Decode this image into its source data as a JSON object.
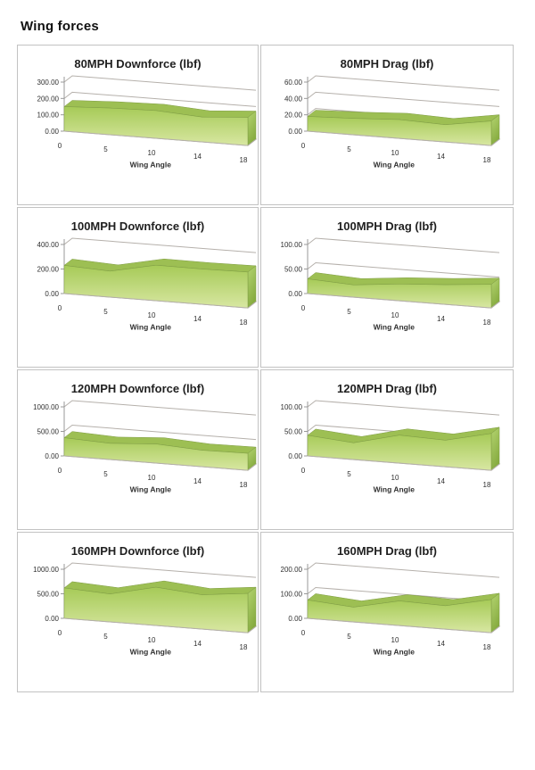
{
  "page": {
    "title": "Wing forces"
  },
  "colors": {
    "area_front_top": "#a6ca57",
    "area_front_bottom": "#d8e7a2",
    "area_ribbon": "#9dbf53",
    "area_side_top": "#b4d470",
    "area_side_bottom": "#86ab40",
    "area_edge": "#7e9c44",
    "gridline": "#b5b0ab",
    "axis": "#999999",
    "label_text": "#303030",
    "cell_border": "#c2c2c2"
  },
  "chart_data": [
    {
      "type": "area",
      "title": "80MPH Downforce (lbf)",
      "xlabel": "Wing Angle",
      "categories": [
        0,
        5,
        10,
        14,
        18
      ],
      "values": [
        150,
        163,
        170,
        152,
        172
      ],
      "ylim": [
        0,
        300
      ],
      "yticks": [
        0,
        100,
        200,
        300
      ]
    },
    {
      "type": "area",
      "title": "80MPH Drag (lbf)",
      "xlabel": "Wing Angle",
      "categories": [
        0,
        5,
        10,
        14,
        18
      ],
      "values": [
        18,
        20,
        23,
        21,
        30
      ],
      "ylim": [
        0,
        60
      ],
      "yticks": [
        0,
        20,
        40,
        60
      ]
    },
    {
      "type": "area",
      "title": "100MPH Downforce (lbf)",
      "xlabel": "Wing Angle",
      "categories": [
        0,
        5,
        10,
        14,
        18
      ],
      "values": [
        230,
        212,
        290,
        288,
        292
      ],
      "ylim": [
        0,
        400
      ],
      "yticks": [
        0,
        200,
        400
      ]
    },
    {
      "type": "area",
      "title": "100MPH Drag (lbf)",
      "xlabel": "Wing Angle",
      "categories": [
        0,
        5,
        10,
        14,
        18
      ],
      "values": [
        30,
        25,
        34,
        40,
        48
      ],
      "ylim": [
        0,
        100
      ],
      "yticks": [
        0,
        50,
        100
      ]
    },
    {
      "type": "area",
      "title": "120MPH Downforce (lbf)",
      "xlabel": "Wing Angle",
      "categories": [
        0,
        5,
        10,
        14,
        18
      ],
      "values": [
        370,
        330,
        390,
        335,
        345
      ],
      "ylim": [
        0,
        1000
      ],
      "yticks": [
        0,
        500,
        1000
      ]
    },
    {
      "type": "area",
      "title": "120MPH Drag (lbf)",
      "xlabel": "Wing Angle",
      "categories": [
        0,
        5,
        10,
        14,
        18
      ],
      "values": [
        42,
        34,
        57,
        54,
        75
      ],
      "ylim": [
        0,
        100
      ],
      "yticks": [
        0,
        50,
        100
      ]
    },
    {
      "type": "area",
      "title": "160MPH Downforce (lbf)",
      "xlabel": "Wing Angle",
      "categories": [
        0,
        5,
        10,
        14,
        18
      ],
      "values": [
        620,
        570,
        780,
        700,
        800
      ],
      "ylim": [
        0,
        1000
      ],
      "yticks": [
        0,
        500,
        1000
      ]
    },
    {
      "type": "area",
      "title": "160MPH Drag (lbf)",
      "xlabel": "Wing Angle",
      "categories": [
        0,
        5,
        10,
        14,
        18
      ],
      "values": [
        75,
        60,
        100,
        95,
        135
      ],
      "ylim": [
        0,
        200
      ],
      "yticks": [
        0,
        100,
        200
      ]
    }
  ]
}
